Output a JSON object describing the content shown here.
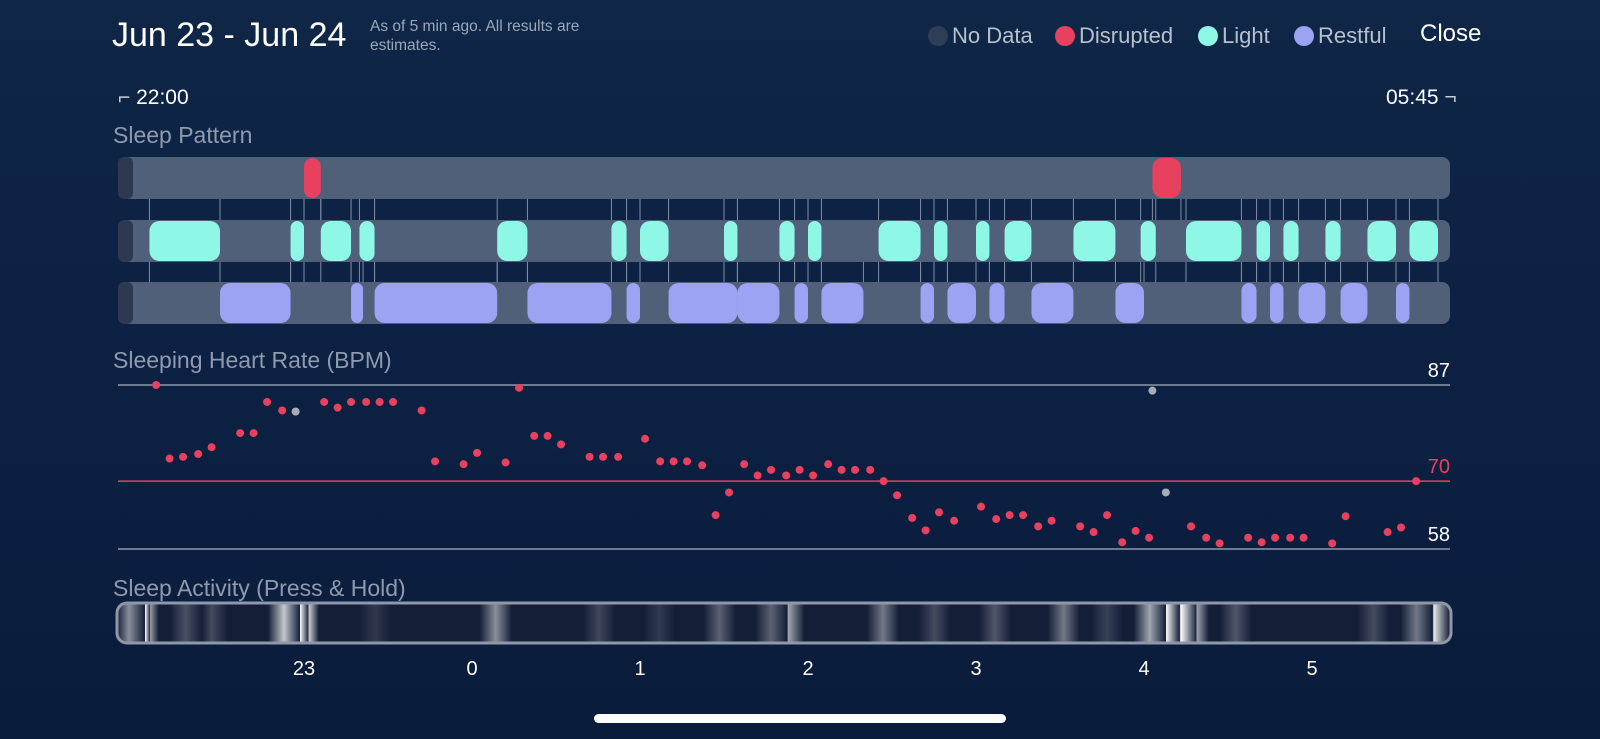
{
  "header": {
    "title": "Jun 23 - Jun 24",
    "note": "As of 5 min ago. All results are estimates.",
    "close_label": "Close"
  },
  "legend": [
    {
      "label": "No Data",
      "color": "#2f3e57"
    },
    {
      "label": "Disrupted",
      "color": "#e8405f"
    },
    {
      "label": "Light",
      "color": "#8ff7e6"
    },
    {
      "label": "Restful",
      "color": "#9ba3f2"
    }
  ],
  "time_range": {
    "start": "22:00",
    "end": "05:45"
  },
  "sections": {
    "sleep_pattern": "Sleep Pattern",
    "heart_rate": "Sleeping Heart Rate (BPM)",
    "activity": "Sleep Activity (Press & Hold)"
  },
  "chart_data": [
    {
      "type": "timeline",
      "title": "Sleep Pattern",
      "x_unit": "hours since 22:00",
      "xlim": [
        0,
        7.75
      ],
      "rows": {
        "Disrupted": [
          [
            1.0,
            1.1
          ],
          [
            6.05,
            6.22
          ]
        ],
        "Light": [
          [
            0.08,
            0.5
          ],
          [
            0.92,
            1.0
          ],
          [
            1.1,
            1.28
          ],
          [
            1.33,
            1.42
          ],
          [
            2.15,
            2.33
          ],
          [
            2.83,
            2.92
          ],
          [
            3.0,
            3.17
          ],
          [
            3.5,
            3.58
          ],
          [
            3.83,
            3.92
          ],
          [
            4.0,
            4.08
          ],
          [
            4.42,
            4.67
          ],
          [
            4.75,
            4.83
          ],
          [
            5.0,
            5.08
          ],
          [
            5.17,
            5.33
          ],
          [
            5.58,
            5.83
          ],
          [
            5.98,
            6.07
          ],
          [
            6.25,
            6.58
          ],
          [
            6.67,
            6.75
          ],
          [
            6.83,
            6.92
          ],
          [
            7.08,
            7.17
          ],
          [
            7.33,
            7.5
          ],
          [
            7.58,
            7.75
          ]
        ],
        "Restful": [
          [
            0.5,
            0.92
          ],
          [
            1.28,
            1.33
          ],
          [
            1.42,
            2.15
          ],
          [
            2.33,
            2.83
          ],
          [
            2.92,
            3.0
          ],
          [
            3.17,
            3.58
          ],
          [
            3.58,
            3.83
          ],
          [
            3.92,
            4.0
          ],
          [
            4.08,
            4.33
          ],
          [
            4.67,
            4.75
          ],
          [
            4.83,
            5.0
          ],
          [
            5.08,
            5.17
          ],
          [
            5.33,
            5.58
          ],
          [
            5.83,
            6.0
          ],
          [
            6.58,
            6.67
          ],
          [
            6.75,
            6.83
          ],
          [
            6.92,
            7.08
          ],
          [
            7.17,
            7.33
          ],
          [
            7.5,
            7.58
          ]
        ]
      }
    },
    {
      "type": "scatter",
      "title": "Sleeping Heart Rate (BPM)",
      "x_unit": "hours since 22:00",
      "xlim": [
        0,
        7.75
      ],
      "ylim": [
        58,
        87
      ],
      "reference_lines": [
        {
          "value": 87,
          "label": "87",
          "color": "#8e98aa"
        },
        {
          "value": 70,
          "label": "70",
          "color": "#e8405f"
        },
        {
          "value": 58,
          "label": "58",
          "color": "#8e98aa"
        }
      ],
      "series": [
        {
          "color": "#e8405f",
          "points": [
            [
              0.12,
              87
            ],
            [
              0.2,
              74
            ],
            [
              0.28,
              74.3
            ],
            [
              0.37,
              74.8
            ],
            [
              0.45,
              76
            ],
            [
              0.62,
              78.5
            ],
            [
              0.7,
              78.5
            ],
            [
              0.78,
              84
            ],
            [
              0.87,
              82.5
            ],
            [
              0.95,
              82.3
            ],
            [
              1.12,
              84
            ],
            [
              1.2,
              83
            ],
            [
              1.28,
              84
            ],
            [
              1.37,
              84
            ],
            [
              1.45,
              84
            ],
            [
              1.53,
              84
            ],
            [
              1.7,
              82.5
            ],
            [
              1.78,
              73.5
            ],
            [
              1.95,
              73
            ],
            [
              2.03,
              75
            ],
            [
              2.2,
              73.3
            ],
            [
              2.28,
              86.5
            ],
            [
              2.37,
              78
            ],
            [
              2.45,
              78
            ],
            [
              2.53,
              76.5
            ],
            [
              2.7,
              74.3
            ],
            [
              2.78,
              74.3
            ],
            [
              2.87,
              74.3
            ],
            [
              3.03,
              77.5
            ],
            [
              3.12,
              73.5
            ],
            [
              3.2,
              73.5
            ],
            [
              3.28,
              73.5
            ],
            [
              3.37,
              72.8
            ],
            [
              3.45,
              64
            ],
            [
              3.53,
              68
            ],
            [
              3.62,
              73
            ],
            [
              3.7,
              71
            ],
            [
              3.78,
              72
            ],
            [
              3.87,
              71
            ],
            [
              3.95,
              72
            ],
            [
              4.03,
              71
            ],
            [
              4.12,
              73
            ],
            [
              4.2,
              72
            ],
            [
              4.28,
              72
            ],
            [
              4.37,
              72
            ],
            [
              4.45,
              70
            ],
            [
              4.53,
              67.5
            ],
            [
              4.62,
              63.5
            ],
            [
              4.7,
              61.3
            ],
            [
              4.78,
              64.5
            ],
            [
              4.87,
              63
            ],
            [
              5.03,
              65.5
            ],
            [
              5.12,
              63.3
            ],
            [
              5.2,
              64
            ],
            [
              5.28,
              64
            ],
            [
              5.37,
              62
            ],
            [
              5.45,
              63
            ],
            [
              5.62,
              62
            ],
            [
              5.7,
              61
            ],
            [
              5.78,
              64
            ],
            [
              5.87,
              59.2
            ],
            [
              5.95,
              61.2
            ],
            [
              6.03,
              60
            ],
            [
              6.28,
              62
            ],
            [
              6.37,
              60
            ],
            [
              6.45,
              59
            ],
            [
              6.62,
              60
            ],
            [
              6.7,
              59.2
            ],
            [
              6.78,
              60
            ],
            [
              6.87,
              60
            ],
            [
              6.95,
              60
            ],
            [
              7.12,
              59
            ],
            [
              7.2,
              63.8
            ],
            [
              7.45,
              61
            ],
            [
              7.53,
              61.8
            ],
            [
              7.62,
              70
            ]
          ]
        },
        {
          "color": "#a5adb8",
          "points": [
            [
              0.95,
              82.3
            ],
            [
              6.05,
              86
            ],
            [
              6.13,
              68
            ]
          ]
        }
      ]
    },
    {
      "type": "heatmap",
      "title": "Sleep Activity (Press & Hold)",
      "x_unit": "hours since 22:00",
      "xlim": [
        0,
        7.75
      ],
      "activity": [
        [
          0.07,
          0.5
        ],
        [
          0.1,
          1.0
        ],
        [
          0.15,
          0.55
        ],
        [
          0.4,
          0.22
        ],
        [
          0.55,
          0.2
        ],
        [
          0.97,
          0.75
        ],
        [
          1.02,
          0.98
        ],
        [
          1.08,
          0.8
        ],
        [
          1.5,
          0.12
        ],
        [
          2.2,
          0.5
        ],
        [
          2.8,
          0.18
        ],
        [
          3.15,
          0.12
        ],
        [
          3.5,
          0.3
        ],
        [
          3.8,
          0.3
        ],
        [
          3.9,
          0.6
        ],
        [
          4.45,
          0.4
        ],
        [
          4.75,
          0.2
        ],
        [
          5.1,
          0.25
        ],
        [
          5.5,
          0.4
        ],
        [
          5.75,
          0.15
        ],
        [
          6.0,
          0.6
        ],
        [
          6.08,
          1.0
        ],
        [
          6.18,
          1.0
        ],
        [
          6.25,
          0.6
        ],
        [
          6.5,
          0.25
        ],
        [
          7.3,
          0.2
        ],
        [
          7.55,
          0.4
        ],
        [
          7.65,
          0.9
        ],
        [
          7.72,
          0.7
        ]
      ],
      "xticks": [
        {
          "value": 1,
          "label": "23"
        },
        {
          "value": 2,
          "label": "0"
        },
        {
          "value": 3,
          "label": "1"
        },
        {
          "value": 4,
          "label": "2"
        },
        {
          "value": 5,
          "label": "3"
        },
        {
          "value": 6,
          "label": "4"
        },
        {
          "value": 7,
          "label": "5"
        }
      ]
    }
  ]
}
